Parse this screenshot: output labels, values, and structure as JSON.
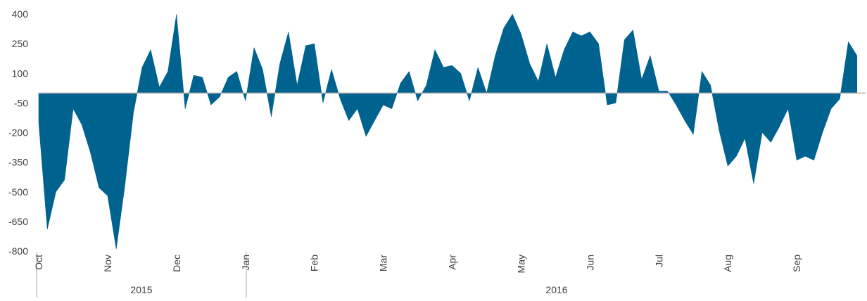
{
  "chart_data": {
    "type": "area",
    "categories": [
      "Oct",
      null,
      null,
      null,
      null,
      null,
      null,
      null,
      "Nov",
      null,
      null,
      null,
      null,
      null,
      null,
      null,
      "Dec",
      null,
      null,
      null,
      null,
      null,
      null,
      null,
      "Jan",
      null,
      null,
      null,
      null,
      null,
      null,
      null,
      "Feb",
      null,
      null,
      null,
      null,
      null,
      null,
      null,
      "Mar",
      null,
      null,
      null,
      null,
      null,
      null,
      null,
      "Apr",
      null,
      null,
      null,
      null,
      null,
      null,
      null,
      "May",
      null,
      null,
      null,
      null,
      null,
      null,
      null,
      "Jun",
      null,
      null,
      null,
      null,
      null,
      null,
      null,
      "Jul",
      null,
      null,
      null,
      null,
      null,
      null,
      null,
      "Aug",
      null,
      null,
      null,
      null,
      null,
      null,
      null,
      "Sep",
      null,
      null,
      null,
      null,
      null,
      null,
      null
    ],
    "values": [
      -150,
      -690,
      -500,
      -440,
      -80,
      -160,
      -300,
      -480,
      -520,
      -790,
      -470,
      -100,
      130,
      220,
      30,
      110,
      400,
      -80,
      90,
      80,
      -60,
      -20,
      80,
      110,
      -40,
      230,
      120,
      -120,
      150,
      310,
      40,
      240,
      250,
      -50,
      120,
      -30,
      -140,
      -80,
      -220,
      -140,
      -60,
      -80,
      50,
      110,
      -40,
      40,
      220,
      130,
      140,
      100,
      -40,
      130,
      0,
      190,
      330,
      400,
      300,
      150,
      60,
      250,
      80,
      220,
      310,
      290,
      310,
      250,
      -60,
      -50,
      270,
      320,
      70,
      190,
      10,
      10,
      -60,
      -140,
      -210,
      110,
      40,
      -190,
      -370,
      -320,
      -230,
      -460,
      -200,
      -250,
      -170,
      -80,
      -340,
      -320,
      -340,
      -200,
      -80,
      -30,
      260,
      190
    ],
    "color": "#00628f",
    "year_labels": [
      "2015",
      "2016"
    ],
    "ylim": [
      -800,
      400
    ],
    "yticks": [
      400,
      250,
      100,
      -50,
      -200,
      -350,
      -500,
      -650,
      -800
    ]
  }
}
